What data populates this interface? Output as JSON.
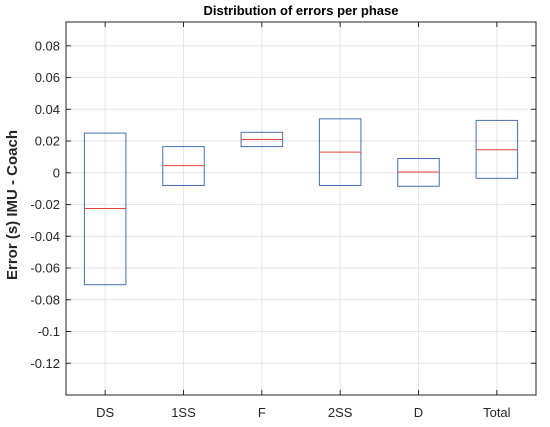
{
  "chart_data": {
    "type": "box",
    "title": "Distribution of errors per phase",
    "xlabel": "",
    "ylabel": "Error (s) IMU - Coach",
    "ylim": [
      -0.14,
      0.095
    ],
    "yticks": [
      0.08,
      0.06,
      0.04,
      0.02,
      0,
      -0.02,
      -0.04,
      -0.06,
      -0.08,
      -0.1,
      -0.12
    ],
    "ytick_labels": [
      "0.08",
      "0.06",
      "0.04",
      "0.02",
      "0",
      "-0.02",
      "-0.04",
      "-0.06",
      "-0.08",
      "-0.1",
      "-0.12"
    ],
    "grid": true,
    "categories": [
      "DS",
      "1SS",
      "F",
      "2SS",
      "D",
      "Total"
    ],
    "q1": [
      -0.0705,
      -0.008,
      0.0165,
      -0.008,
      -0.0085,
      -0.0035
    ],
    "median": [
      -0.0225,
      0.0045,
      0.021,
      0.013,
      0.0005,
      0.0145
    ],
    "q3": [
      0.025,
      0.0165,
      0.0255,
      0.034,
      0.009,
      0.033
    ],
    "colors": {
      "box": "#4a6fb5",
      "median": "#e8433b"
    }
  }
}
